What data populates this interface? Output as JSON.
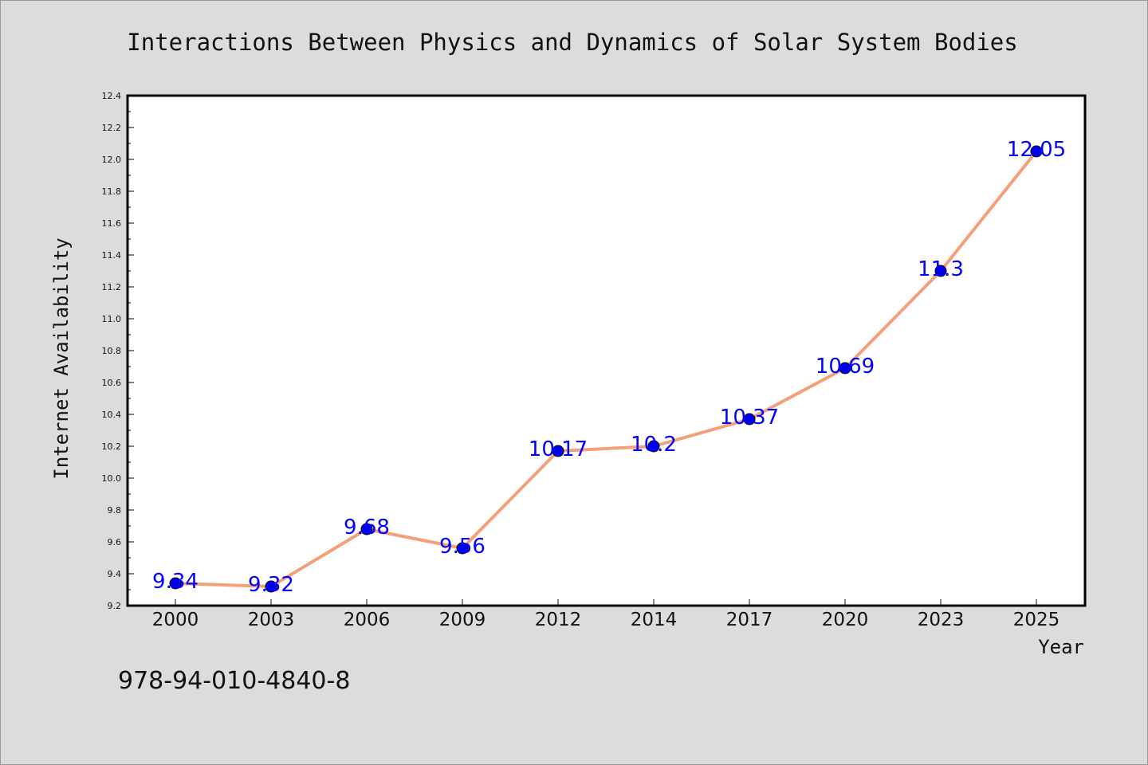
{
  "chart_data": {
    "type": "line",
    "title": "Interactions Between Physics and Dynamics of Solar System Bodies",
    "xlabel": "Year",
    "ylabel": "Internet Availability",
    "categories": [
      "2000",
      "2003",
      "2006",
      "2009",
      "2012",
      "2014",
      "2017",
      "2020",
      "2023",
      "2025"
    ],
    "series": [
      {
        "values": [
          9.34,
          9.32,
          9.68,
          9.56,
          10.17,
          10.2,
          10.37,
          10.69,
          11.3,
          12.05
        ],
        "data_labels": [
          "9.34",
          "9.32",
          "9.68",
          "9.56",
          "10.17",
          "10.2",
          "10.37",
          "10.69",
          "11.3",
          "12.05"
        ],
        "line_color": "#f4a07a",
        "marker_color": "#0000ee"
      }
    ],
    "ylim": [
      9.2,
      12.4
    ],
    "yticks": [
      "9.2",
      "9.4",
      "9.6",
      "9.8",
      "10.0",
      "10.2",
      "10.4",
      "10.6",
      "10.8",
      "11.0",
      "11.2",
      "11.4",
      "11.6",
      "11.8",
      "12.0",
      "12.2",
      "12.4"
    ],
    "grid": false,
    "legend": "none"
  },
  "footer": {
    "isbn": "978-94-010-4840-8"
  },
  "colors": {
    "background": "#dcdcdc",
    "plot_background": "#ffffff",
    "data_label": "#0000ff"
  }
}
